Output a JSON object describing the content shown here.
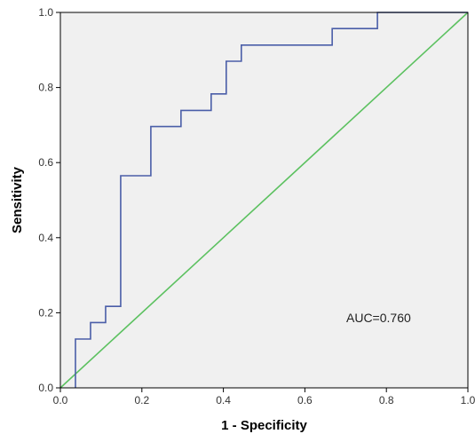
{
  "chart_data": {
    "type": "line",
    "xlabel": "1 - Specificity",
    "ylabel": "Sensitivity",
    "xlim": [
      0.0,
      1.0
    ],
    "ylim": [
      0.0,
      1.0
    ],
    "x_ticks": [
      "0.0",
      "0.2",
      "0.4",
      "0.6",
      "0.8",
      "1.0"
    ],
    "y_ticks": [
      "0.0",
      "0.2",
      "0.4",
      "0.6",
      "0.8",
      "1.0"
    ],
    "grid": false,
    "annotation": "AUC=0.760",
    "colors": {
      "plot_background": "#f0f0f0",
      "roc_curve": "#4a5ea8",
      "reference_line": "#5cc160",
      "frame": "#000000"
    },
    "series": [
      {
        "type": "step",
        "x": [
          0.037,
          0.037,
          0.074,
          0.074,
          0.111,
          0.111,
          0.148,
          0.148,
          0.222,
          0.222,
          0.296,
          0.296,
          0.37,
          0.37,
          0.407,
          0.407,
          0.444,
          0.444,
          0.667,
          0.667,
          0.778,
          0.778,
          1.0
        ],
        "y": [
          0.0,
          0.13,
          0.13,
          0.174,
          0.174,
          0.217,
          0.217,
          0.565,
          0.565,
          0.696,
          0.696,
          0.739,
          0.739,
          0.783,
          0.783,
          0.87,
          0.87,
          0.913,
          0.913,
          0.957,
          0.957,
          1.0,
          1.0
        ]
      },
      {
        "type": "reference",
        "x": [
          0.0,
          1.0
        ],
        "y": [
          0.0,
          1.0
        ]
      }
    ]
  }
}
